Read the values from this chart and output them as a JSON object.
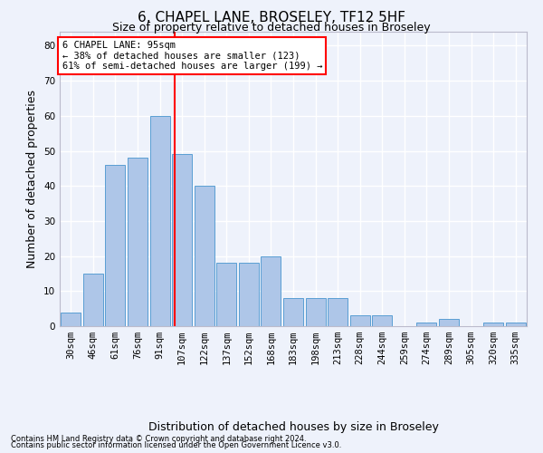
{
  "title": "6, CHAPEL LANE, BROSELEY, TF12 5HF",
  "subtitle": "Size of property relative to detached houses in Broseley",
  "xlabel": "Distribution of detached houses by size in Broseley",
  "ylabel": "Number of detached properties",
  "bar_color": "#aec6e8",
  "bar_edge_color": "#5a9fd4",
  "categories": [
    "30sqm",
    "46sqm",
    "61sqm",
    "76sqm",
    "91sqm",
    "107sqm",
    "122sqm",
    "137sqm",
    "152sqm",
    "168sqm",
    "183sqm",
    "198sqm",
    "213sqm",
    "228sqm",
    "244sqm",
    "259sqm",
    "274sqm",
    "289sqm",
    "305sqm",
    "320sqm",
    "335sqm"
  ],
  "values": [
    4,
    15,
    46,
    48,
    60,
    49,
    40,
    18,
    18,
    20,
    8,
    8,
    8,
    3,
    3,
    0,
    1,
    2,
    0,
    1,
    1
  ],
  "ylim": [
    0,
    84
  ],
  "yticks": [
    0,
    10,
    20,
    30,
    40,
    50,
    60,
    70,
    80
  ],
  "red_line_x": 4.67,
  "annotation_line1": "6 CHAPEL LANE: 95sqm",
  "annotation_line2": "← 38% of detached houses are smaller (123)",
  "annotation_line3": "61% of semi-detached houses are larger (199) →",
  "annotation_box_color": "white",
  "annotation_box_edge": "red",
  "footnote1": "Contains HM Land Registry data © Crown copyright and database right 2024.",
  "footnote2": "Contains public sector information licensed under the Open Government Licence v3.0.",
  "background_color": "#eef2fb",
  "grid_color": "white",
  "title_fontsize": 11,
  "subtitle_fontsize": 9,
  "tick_fontsize": 7.5,
  "ylabel_fontsize": 9,
  "xlabel_fontsize": 9,
  "footnote_fontsize": 6,
  "annotation_fontsize": 7.5
}
